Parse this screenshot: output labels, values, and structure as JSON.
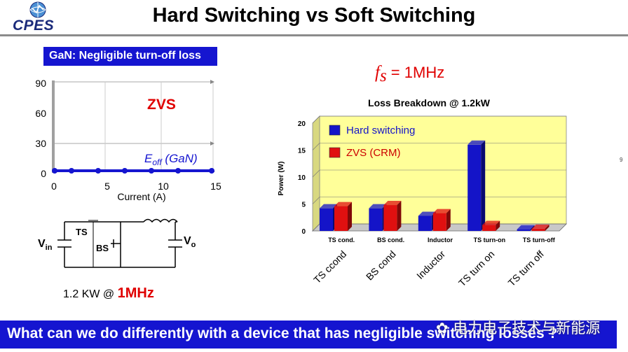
{
  "header": {
    "logo_text": "CPES",
    "title": "Hard Switching vs Soft Switching"
  },
  "gan_label": "GaN: Negligible turn-off loss",
  "left_plot": {
    "y_ticks": [
      "90",
      "60",
      "30",
      "0"
    ],
    "x_ticks": [
      "0",
      "5",
      "10",
      "15"
    ],
    "xlabel": "Current (A)",
    "zvs_label": "ZVS",
    "curve_label_main": "E",
    "curve_label_sub": "off",
    "curve_label_rest": " (GaN)"
  },
  "fs": {
    "symbol": "f",
    "sub": "s",
    "value": " = 1MHz"
  },
  "circuit": {
    "vin_main": "V",
    "vin_sub": "in",
    "vo_main": "V",
    "vo_sub": "o",
    "ts": "TS",
    "bs": "BS"
  },
  "power_line": {
    "prefix": "1.2 KW @ ",
    "freq": "1MHz"
  },
  "chart_data": {
    "type": "bar",
    "title": "Loss Breakdown @ 1.2kW",
    "ylabel": "Power (W)",
    "ylim": [
      0,
      20
    ],
    "yticks": [
      "0",
      "5",
      "10",
      "15",
      "20"
    ],
    "categories": [
      "TS cond.",
      "BS cond.",
      "Inductor",
      "TS turn-on",
      "TS turn-off"
    ],
    "rotated_labels": [
      "TS ccond",
      "BS cond",
      "Inductor",
      "TS turn on",
      "TS turn off"
    ],
    "series": [
      {
        "name": "Hard switching",
        "values": [
          4.2,
          4.2,
          2.8,
          16.0,
          0.3
        ],
        "color": "#1414c8"
      },
      {
        "name": "ZVS (CRM)",
        "values": [
          4.6,
          4.8,
          3.3,
          1.1,
          0.4
        ],
        "color": "#e01010"
      }
    ],
    "plot_bg": "#ffff99"
  },
  "footer": {
    "question": "What can we do differently with a device that has negligible switching losses ?",
    "watermark": "电力电子技术与新能源",
    "page": "9"
  }
}
